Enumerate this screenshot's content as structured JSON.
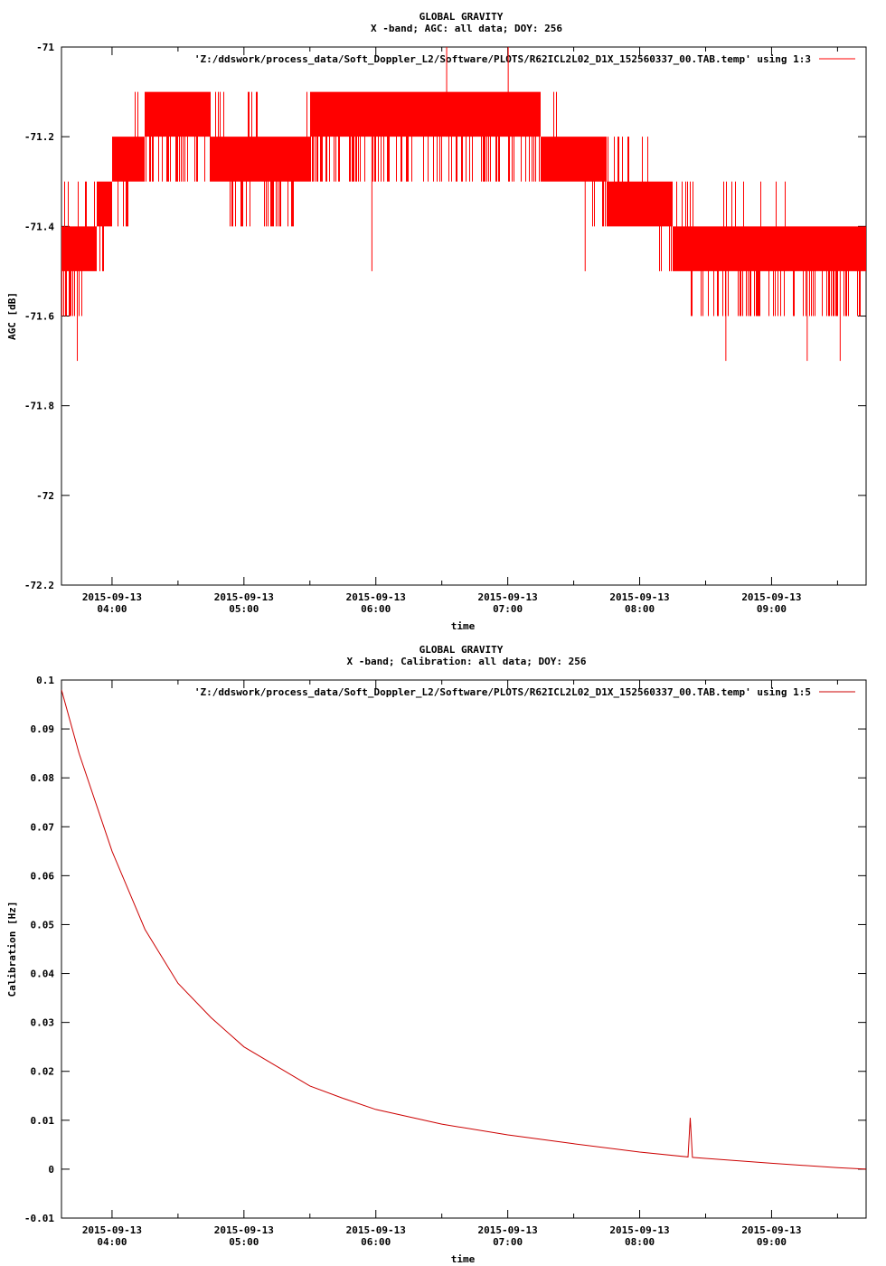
{
  "chart_data": [
    {
      "type": "line",
      "title": "GLOBAL GRAVITY",
      "subtitle": "X -band; AGC: all data; DOY: 256",
      "xlabel": "time",
      "ylabel": "AGC [dB]",
      "ylim": [
        -72.2,
        -71.0
      ],
      "yticks": [
        -72.2,
        -72,
        -71.8,
        -71.6,
        -71.4,
        -71.2,
        -71
      ],
      "yticklabels": [
        "-72.2",
        "-72",
        "-71.8",
        "-71.6",
        "-71.4",
        "-71.2",
        "-71"
      ],
      "xlim": [
        "2015-09-13 03:37",
        "2015-09-13 09:43"
      ],
      "xticks": [
        "2015-09-13 04:00",
        "2015-09-13 05:00",
        "2015-09-13 06:00",
        "2015-09-13 07:00",
        "2015-09-13 08:00",
        "2015-09-13 09:00"
      ],
      "xticklabels": [
        [
          "2015-09-13",
          "04:00"
        ],
        [
          "2015-09-13",
          "05:00"
        ],
        [
          "2015-09-13",
          "06:00"
        ],
        [
          "2015-09-13",
          "07:00"
        ],
        [
          "2015-09-13",
          "08:00"
        ],
        [
          "2015-09-13",
          "09:00"
        ]
      ],
      "grid": false,
      "legend_position": "top-right",
      "series": [
        {
          "name": "'Z:/ddswork/process_data/Soft_Doppler_L2/Software/PLOTS/R62ICL2L02_D1X_152560337_00.TAB.temp' using 1:3",
          "color": "#ff0000",
          "x": [
            "2015-09-13 03:37",
            "2015-09-13 03:45",
            "2015-09-13 03:53",
            "2015-09-13 04:00",
            "2015-09-13 04:15",
            "2015-09-13 04:30",
            "2015-09-13 04:45",
            "2015-09-13 05:00",
            "2015-09-13 05:15",
            "2015-09-13 05:30",
            "2015-09-13 05:45",
            "2015-09-13 06:00",
            "2015-09-13 06:15",
            "2015-09-13 06:30",
            "2015-09-13 06:45",
            "2015-09-13 07:00",
            "2015-09-13 07:15",
            "2015-09-13 07:30",
            "2015-09-13 07:45",
            "2015-09-13 08:00",
            "2015-09-13 08:15",
            "2015-09-13 08:30",
            "2015-09-13 08:45",
            "2015-09-13 09:00",
            "2015-09-13 09:15",
            "2015-09-13 09:30",
            "2015-09-13 09:43"
          ],
          "y_min": [
            -71.6,
            -71.6,
            -71.5,
            -71.4,
            -71.3,
            -71.3,
            -71.3,
            -71.4,
            -71.4,
            -71.3,
            -71.3,
            -71.3,
            -71.3,
            -71.3,
            -71.3,
            -71.3,
            -71.3,
            -71.3,
            -71.4,
            -71.4,
            -71.5,
            -71.6,
            -71.6,
            -71.6,
            -71.6,
            -71.6,
            -71.6
          ],
          "y_max": [
            -71.3,
            -71.3,
            -71.3,
            -71.2,
            -71.1,
            -71.1,
            -71.1,
            -71.1,
            -71.2,
            -71.1,
            -71.1,
            -71.1,
            -71.1,
            -71.1,
            -71.1,
            -71.1,
            -71.1,
            -71.2,
            -71.2,
            -71.2,
            -71.3,
            -71.3,
            -71.3,
            -71.3,
            -71.4,
            -71.4,
            -71.4
          ],
          "spikes": [
            {
              "x": "2015-09-13 03:44",
              "y": -71.7
            },
            {
              "x": "2015-09-13 05:58",
              "y": -71.5
            },
            {
              "x": "2015-09-13 06:32",
              "y": -71.0
            },
            {
              "x": "2015-09-13 07:00",
              "y": -71.0
            },
            {
              "x": "2015-09-13 07:35",
              "y": -71.5
            },
            {
              "x": "2015-09-13 08:39",
              "y": -71.7
            },
            {
              "x": "2015-09-13 09:16",
              "y": -71.7
            },
            {
              "x": "2015-09-13 09:31",
              "y": -71.7
            }
          ]
        }
      ]
    },
    {
      "type": "line",
      "title": "GLOBAL GRAVITY",
      "subtitle": "X -band; Calibration: all data; DOY: 256",
      "xlabel": "time",
      "ylabel": "Calibration [Hz]",
      "ylim": [
        -0.01,
        0.1
      ],
      "yticks": [
        -0.01,
        0,
        0.01,
        0.02,
        0.03,
        0.04,
        0.05,
        0.06,
        0.07,
        0.08,
        0.09,
        0.1
      ],
      "yticklabels": [
        "-0.01",
        "0",
        "0.01",
        "0.02",
        "0.03",
        "0.04",
        "0.05",
        "0.06",
        "0.07",
        "0.08",
        "0.09",
        "0.1"
      ],
      "xlim": [
        "2015-09-13 03:37",
        "2015-09-13 09:43"
      ],
      "xticks": [
        "2015-09-13 04:00",
        "2015-09-13 05:00",
        "2015-09-13 06:00",
        "2015-09-13 07:00",
        "2015-09-13 08:00",
        "2015-09-13 09:00"
      ],
      "xticklabels": [
        [
          "2015-09-13",
          "04:00"
        ],
        [
          "2015-09-13",
          "05:00"
        ],
        [
          "2015-09-13",
          "06:00"
        ],
        [
          "2015-09-13",
          "07:00"
        ],
        [
          "2015-09-13",
          "08:00"
        ],
        [
          "2015-09-13",
          "09:00"
        ]
      ],
      "grid": false,
      "legend_position": "top-right",
      "series": [
        {
          "name": "'Z:/ddswork/process_data/Soft_Doppler_L2/Software/PLOTS/R62ICL2L02_D1X_152560337_00.TAB.temp' using 1:5",
          "color": "#cc0000",
          "x": [
            "2015-09-13 03:37",
            "2015-09-13 03:45",
            "2015-09-13 04:00",
            "2015-09-13 04:15",
            "2015-09-13 04:30",
            "2015-09-13 04:45",
            "2015-09-13 05:00",
            "2015-09-13 05:15",
            "2015-09-13 05:30",
            "2015-09-13 05:45",
            "2015-09-13 06:00",
            "2015-09-13 06:30",
            "2015-09-13 07:00",
            "2015-09-13 07:30",
            "2015-09-13 08:00",
            "2015-09-13 08:22",
            "2015-09-13 08:23",
            "2015-09-13 08:24",
            "2015-09-13 08:30",
            "2015-09-13 09:00",
            "2015-09-13 09:30",
            "2015-09-13 09:43"
          ],
          "y": [
            0.098,
            0.085,
            0.065,
            0.049,
            0.038,
            0.031,
            0.025,
            0.021,
            0.017,
            0.0145,
            0.0122,
            0.0092,
            0.007,
            0.0052,
            0.0035,
            0.0025,
            0.0105,
            0.0024,
            0.0022,
            0.0012,
            0.0003,
            0.0
          ]
        }
      ]
    }
  ]
}
